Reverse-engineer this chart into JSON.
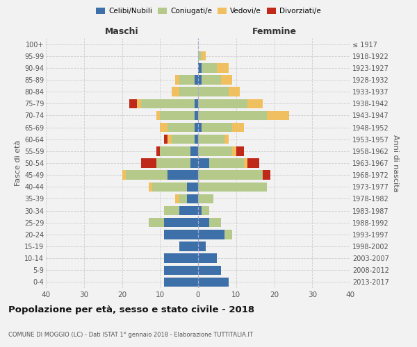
{
  "age_groups": [
    "0-4",
    "5-9",
    "10-14",
    "15-19",
    "20-24",
    "25-29",
    "30-34",
    "35-39",
    "40-44",
    "45-49",
    "50-54",
    "55-59",
    "60-64",
    "65-69",
    "70-74",
    "75-79",
    "80-84",
    "85-89",
    "90-94",
    "95-99",
    "100+"
  ],
  "birth_years": [
    "2013-2017",
    "2008-2012",
    "2003-2007",
    "1998-2002",
    "1993-1997",
    "1988-1992",
    "1983-1987",
    "1978-1982",
    "1973-1977",
    "1968-1972",
    "1963-1967",
    "1958-1962",
    "1953-1957",
    "1948-1952",
    "1943-1947",
    "1938-1942",
    "1933-1937",
    "1928-1932",
    "1923-1927",
    "1918-1922",
    "≤ 1917"
  ],
  "male": {
    "celibi": [
      9,
      9,
      9,
      5,
      9,
      9,
      5,
      3,
      3,
      8,
      2,
      2,
      1,
      1,
      1,
      1,
      0,
      1,
      0,
      0,
      0
    ],
    "coniugati": [
      0,
      0,
      0,
      0,
      0,
      4,
      4,
      2,
      9,
      11,
      9,
      8,
      6,
      7,
      9,
      14,
      5,
      4,
      0,
      0,
      0
    ],
    "vedovi": [
      0,
      0,
      0,
      0,
      0,
      0,
      0,
      1,
      1,
      1,
      0,
      0,
      1,
      2,
      1,
      1,
      2,
      1,
      0,
      0,
      0
    ],
    "divorziati": [
      0,
      0,
      0,
      0,
      0,
      0,
      0,
      0,
      0,
      0,
      4,
      1,
      1,
      0,
      0,
      2,
      0,
      0,
      0,
      0,
      0
    ]
  },
  "female": {
    "nubili": [
      8,
      6,
      5,
      2,
      7,
      3,
      1,
      0,
      0,
      0,
      3,
      0,
      0,
      1,
      0,
      0,
      0,
      1,
      1,
      0,
      0
    ],
    "coniugate": [
      0,
      0,
      0,
      0,
      2,
      3,
      2,
      4,
      18,
      17,
      9,
      9,
      7,
      8,
      18,
      13,
      8,
      5,
      4,
      1,
      0
    ],
    "vedove": [
      0,
      0,
      0,
      0,
      0,
      0,
      0,
      0,
      0,
      0,
      1,
      1,
      1,
      3,
      6,
      4,
      3,
      3,
      3,
      1,
      0
    ],
    "divorziate": [
      0,
      0,
      0,
      0,
      0,
      0,
      0,
      0,
      0,
      2,
      3,
      2,
      0,
      0,
      0,
      0,
      0,
      0,
      0,
      0,
      0
    ]
  },
  "colors": {
    "celibi": "#3d6fa8",
    "coniugati": "#b5c98a",
    "vedovi": "#f0c060",
    "divorziati": "#c0281a"
  },
  "xlim": 40,
  "title": "Popolazione per età, sesso e stato civile - 2018",
  "subtitle": "COMUNE DI MOGGIO (LC) - Dati ISTAT 1° gennaio 2018 - Elaborazione TUTTITALIA.IT",
  "ylabel_left": "Fasce di età",
  "ylabel_right": "Anni di nascita",
  "xlabel_left": "Maschi",
  "xlabel_right": "Femmine",
  "bg_color": "#f2f2f2",
  "grid_color": "#cccccc"
}
